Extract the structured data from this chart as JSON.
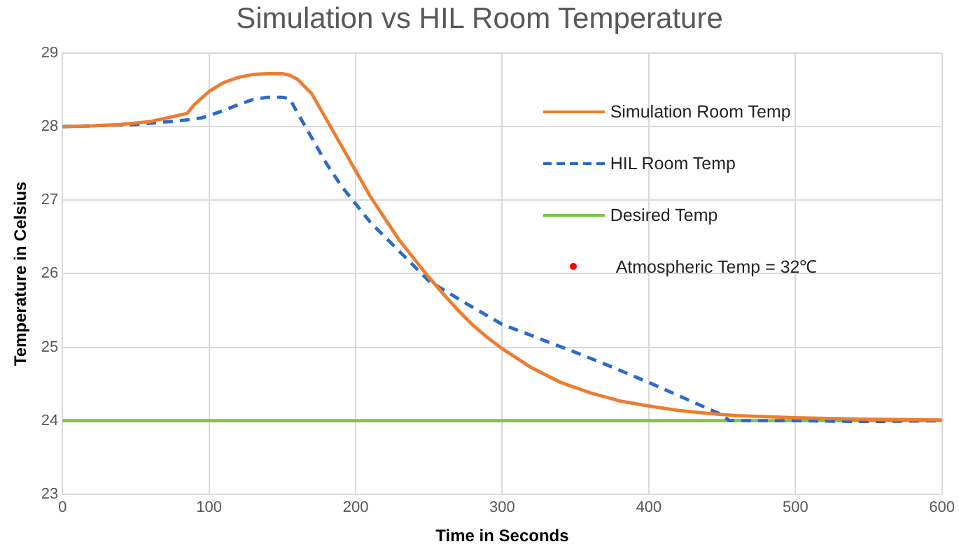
{
  "chart_data": {
    "type": "line",
    "title": "Simulation vs HIL Room Temperature",
    "xlabel": "Time in Seconds",
    "ylabel": "Temperature in Celsius",
    "xlim": [
      0,
      600
    ],
    "xticks": [
      0,
      100,
      200,
      300,
      400,
      500,
      600
    ],
    "ylim": [
      23,
      29
    ],
    "yticks": [
      23,
      24,
      25,
      26,
      27,
      28,
      29
    ],
    "grid": true,
    "legend": "right",
    "marker": "none",
    "series": [
      {
        "name": "Simulation Room Temp",
        "color": "#ed7d31",
        "line_style": "solid",
        "x": [
          0,
          20,
          40,
          60,
          85,
          90,
          100,
          110,
          120,
          130,
          140,
          150,
          155,
          160,
          170,
          180,
          190,
          200,
          210,
          220,
          230,
          240,
          250,
          260,
          270,
          280,
          290,
          300,
          320,
          340,
          360,
          380,
          400,
          420,
          440,
          460,
          500,
          550,
          600
        ],
        "values": [
          28.0,
          28.01,
          28.03,
          28.07,
          28.18,
          28.3,
          28.48,
          28.6,
          28.67,
          28.71,
          28.72,
          28.72,
          28.7,
          28.65,
          28.45,
          28.1,
          27.75,
          27.4,
          27.05,
          26.75,
          26.45,
          26.2,
          25.95,
          25.72,
          25.5,
          25.3,
          25.13,
          24.98,
          24.72,
          24.52,
          24.38,
          24.27,
          24.2,
          24.14,
          24.1,
          24.07,
          24.04,
          24.02,
          24.01
        ]
      },
      {
        "name": "HIL Room Temp",
        "color": "#2e6bc9",
        "line_style": "dashed",
        "x": [
          0,
          50,
          80,
          95,
          100,
          110,
          120,
          130,
          140,
          150,
          155,
          160,
          170,
          180,
          190,
          200,
          210,
          220,
          230,
          240,
          250,
          275,
          300,
          325,
          350,
          375,
          400,
          425,
          450,
          455,
          500,
          550,
          600
        ],
        "values": [
          28.0,
          28.03,
          28.08,
          28.12,
          28.15,
          28.22,
          28.3,
          28.37,
          28.4,
          28.4,
          28.38,
          28.2,
          27.85,
          27.5,
          27.2,
          26.95,
          26.7,
          26.5,
          26.3,
          26.1,
          25.9,
          25.6,
          25.31,
          25.12,
          24.93,
          24.73,
          24.52,
          24.3,
          24.08,
          24.0,
          24.0,
          23.99,
          24.0
        ]
      },
      {
        "name": "Desired Temp",
        "color": "#7cc44a",
        "line_style": "solid",
        "x": [
          0,
          600
        ],
        "values": [
          24,
          24
        ]
      }
    ],
    "annotations": [
      "Atmospheric Temp = 32℃"
    ]
  }
}
